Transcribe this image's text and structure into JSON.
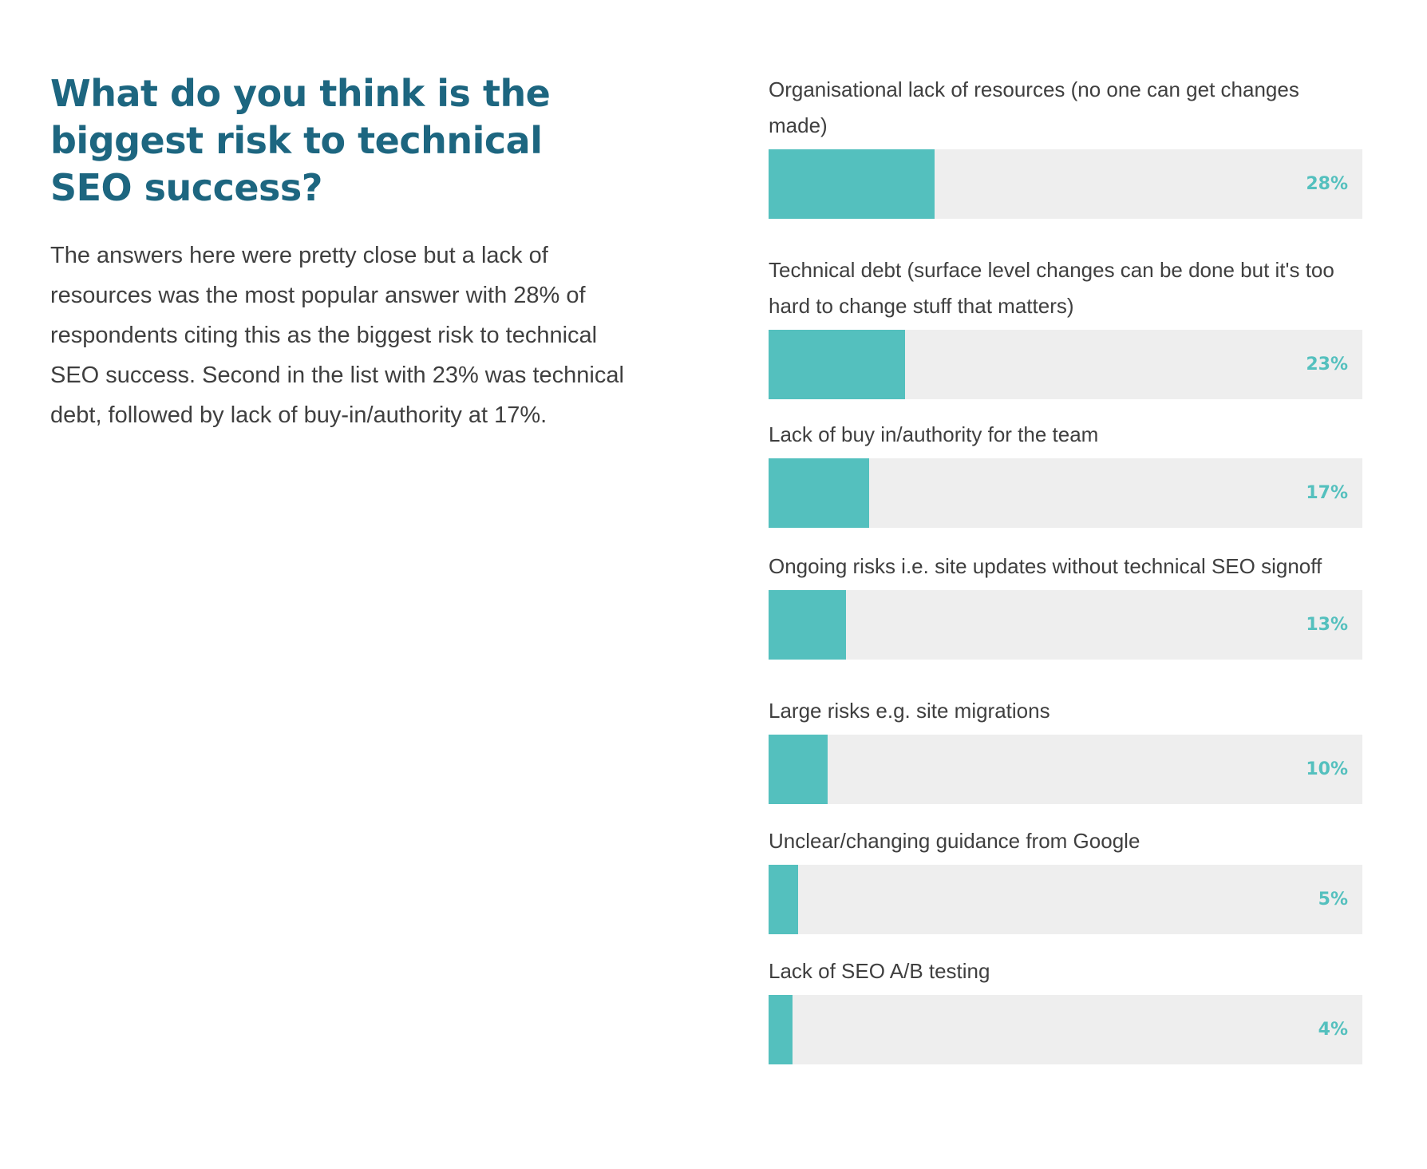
{
  "colors": {
    "heading": "#1d6680",
    "body_text": "#3f3f3f",
    "bar_fill": "#54c0be",
    "bar_track": "#eeeeee",
    "value_text": "#54c0be"
  },
  "intro": {
    "heading": "What do you think is the biggest risk to technical SEO success?",
    "body": "The answers here were pretty close but a lack of resources was the most popular answer with 28% of respondents citing this as the biggest risk to technical SEO success. Second in the list with 23% was technical debt, followed by lack of buy-in/authority at 17%."
  },
  "chart_data": {
    "type": "bar",
    "orientation": "horizontal",
    "title": "What do you think is the biggest risk to technical SEO success?",
    "xlim": [
      0,
      100
    ],
    "unit": "%",
    "categories": [
      "Organisational lack of resources (no one can get changes made)",
      "Technical debt (surface level changes can be done but it's too hard to change stuff that matters)",
      "Lack of buy in/authority for the team",
      "Ongoing risks i.e. site updates without technical SEO signoff",
      "Large risks e.g. site migrations",
      "Unclear/changing guidance from Google",
      "Lack of SEO A/B testing"
    ],
    "values": [
      28,
      23,
      17,
      13,
      10,
      5,
      4
    ],
    "value_labels": [
      "28%",
      "23%",
      "17%",
      "13%",
      "10%",
      "5%",
      "4%"
    ]
  }
}
